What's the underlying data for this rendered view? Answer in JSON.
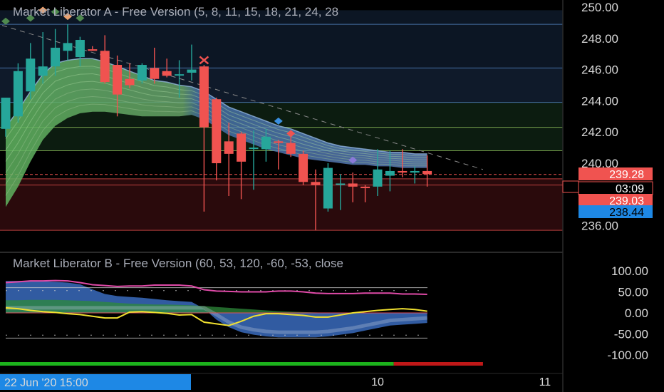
{
  "chart_data": {
    "type": "candlestick",
    "main_panel": {
      "title": "Market Liberator A - Free Version (5, 8, 11, 15, 18, 21, 24, 28",
      "y_ticks": [
        "250.00",
        "248.00",
        "246.00",
        "244.00",
        "242.00",
        "240.00",
        "236.00"
      ],
      "ylim": [
        235.4,
        250.6
      ],
      "price_badges": [
        {
          "text": "239.28",
          "value": 239.28,
          "bg": "#f05350",
          "fg": "#ffffff"
        },
        {
          "text": "03:09",
          "value": 238.6,
          "bg": "#000000",
          "fg": "#ffffff",
          "border": "#f05350"
        },
        {
          "text": "239.03",
          "value": 239.03,
          "bg": "#f05350",
          "fg": "#ffffff"
        },
        {
          "text": "238.44",
          "value": 238.44,
          "bg": "#1e88e5",
          "fg": "#000000",
          "dash": "-"
        }
      ],
      "horizontal_levels": [
        {
          "value": 248.9,
          "color": "#5a8fd0"
        },
        {
          "value": 246.1,
          "color": "#5a8fd0"
        },
        {
          "value": 243.9,
          "color": "#5a8fd0"
        },
        {
          "value": 242.3,
          "color": "#9acd60"
        },
        {
          "value": 240.8,
          "color": "#9acd60"
        },
        {
          "value": 239.0,
          "color": "#f05350"
        },
        {
          "value": 238.6,
          "color": "#f05350"
        },
        {
          "value": 235.7,
          "color": "#f05350"
        }
      ],
      "candles": [
        {
          "o": 242.2,
          "h": 244.2,
          "l": 241.7,
          "c": 244.2
        },
        {
          "o": 243.0,
          "h": 246.4,
          "l": 242.6,
          "c": 245.9
        },
        {
          "o": 244.6,
          "h": 247.7,
          "l": 244.1,
          "c": 246.7
        },
        {
          "o": 245.6,
          "h": 248.4,
          "l": 245.1,
          "c": 246.2
        },
        {
          "o": 246.2,
          "h": 248.6,
          "l": 245.6,
          "c": 247.4
        },
        {
          "o": 247.2,
          "h": 248.9,
          "l": 246.6,
          "c": 247.7
        },
        {
          "o": 246.8,
          "h": 248.1,
          "l": 246.2,
          "c": 247.9
        },
        {
          "o": 247.3,
          "h": 247.5,
          "l": 247.2,
          "c": 247.2
        },
        {
          "o": 247.2,
          "h": 248.2,
          "l": 245.1,
          "c": 245.2
        },
        {
          "o": 246.3,
          "h": 246.9,
          "l": 243.0,
          "c": 244.4
        },
        {
          "o": 245.4,
          "h": 246.4,
          "l": 244.8,
          "c": 245.0
        },
        {
          "o": 245.3,
          "h": 246.4,
          "l": 245.1,
          "c": 246.3
        },
        {
          "o": 246.1,
          "h": 247.4,
          "l": 245.1,
          "c": 245.4
        },
        {
          "o": 245.9,
          "h": 246.7,
          "l": 245.5,
          "c": 245.6
        },
        {
          "o": 245.7,
          "h": 246.6,
          "l": 244.2,
          "c": 245.7
        },
        {
          "o": 245.8,
          "h": 247.6,
          "l": 245.3,
          "c": 246.0
        },
        {
          "o": 246.2,
          "h": 246.3,
          "l": 236.9,
          "c": 242.3
        },
        {
          "o": 244.1,
          "h": 244.2,
          "l": 238.9,
          "c": 240.0
        },
        {
          "o": 241.4,
          "h": 242.6,
          "l": 237.9,
          "c": 240.6
        },
        {
          "o": 241.9,
          "h": 242.0,
          "l": 237.7,
          "c": 240.1
        },
        {
          "o": 241.0,
          "h": 242.1,
          "l": 238.3,
          "c": 241.0
        },
        {
          "o": 240.9,
          "h": 242.2,
          "l": 240.1,
          "c": 241.7
        },
        {
          "o": 241.4,
          "h": 241.5,
          "l": 239.6,
          "c": 241.3
        },
        {
          "o": 241.3,
          "h": 241.7,
          "l": 240.4,
          "c": 240.6
        },
        {
          "o": 240.6,
          "h": 240.8,
          "l": 238.6,
          "c": 238.8
        },
        {
          "o": 238.8,
          "h": 239.6,
          "l": 235.7,
          "c": 238.6
        },
        {
          "o": 237.1,
          "h": 240.0,
          "l": 236.9,
          "c": 239.7
        },
        {
          "o": 238.7,
          "h": 239.3,
          "l": 237.0,
          "c": 238.7
        },
        {
          "o": 238.7,
          "h": 239.4,
          "l": 237.5,
          "c": 238.5
        },
        {
          "o": 238.5,
          "h": 238.6,
          "l": 237.5,
          "c": 238.4
        },
        {
          "o": 238.5,
          "h": 240.9,
          "l": 237.9,
          "c": 239.6
        },
        {
          "o": 239.2,
          "h": 240.8,
          "l": 238.2,
          "c": 239.5
        },
        {
          "o": 239.5,
          "h": 240.9,
          "l": 239.1,
          "c": 239.4
        },
        {
          "o": 239.4,
          "h": 239.8,
          "l": 238.7,
          "c": 239.5
        },
        {
          "o": 239.5,
          "h": 240.5,
          "l": 238.5,
          "c": 239.3
        }
      ],
      "markers": [
        {
          "i": 0,
          "value": 249.1,
          "shape": "diamond",
          "color": "#4f8a4f"
        },
        {
          "i": 2,
          "value": 249.3,
          "shape": "diamond",
          "color": "#4f8a4f"
        },
        {
          "i": 3,
          "value": 249.8,
          "shape": "diamond",
          "color": "#e8a070"
        },
        {
          "i": 4,
          "value": 249.7,
          "shape": "diamond",
          "color": "#4f8a4f"
        },
        {
          "i": 5,
          "value": 249.4,
          "shape": "diamond",
          "color": "#e8a070"
        },
        {
          "i": 6,
          "value": 249.3,
          "shape": "diamond",
          "color": "#4f8a4f"
        },
        {
          "i": 16,
          "value": 246.6,
          "shape": "cross",
          "color": "#f05350"
        },
        {
          "i": 22,
          "value": 242.7,
          "shape": "diamond",
          "color": "#3a8fe0"
        },
        {
          "i": 23,
          "value": 241.9,
          "shape": "diamond",
          "color": "#f05350"
        },
        {
          "i": 28,
          "value": 240.2,
          "shape": "diamond",
          "color": "#8a7ad8"
        }
      ],
      "ribbon_upper": [
        242.3,
        243.4,
        244.6,
        245.7,
        246.4,
        246.6,
        246.7,
        246.7,
        246.5,
        246.2,
        245.9,
        245.6,
        245.3,
        245.2,
        245.0,
        244.9,
        244.6,
        244.1,
        243.6,
        243.3,
        243.0,
        242.7,
        242.4,
        242.2,
        241.9,
        241.6,
        241.3,
        241.1,
        241.0,
        240.9,
        240.8,
        240.7,
        240.7,
        240.6,
        240.6
      ],
      "ribbon_lower": [
        237.2,
        238.5,
        240.1,
        241.5,
        242.4,
        242.9,
        243.2,
        243.3,
        243.3,
        243.2,
        243.1,
        243.0,
        243.0,
        243.0,
        243.0,
        243.1,
        242.8,
        242.3,
        241.8,
        241.5,
        241.2,
        240.9,
        240.7,
        240.5,
        240.3,
        240.2,
        240.1,
        240.0,
        239.9,
        239.9,
        239.8,
        239.8,
        239.7,
        239.7,
        239.7
      ],
      "trend_line": {
        "from": [
          -1,
          249.0
        ],
        "to": [
          38.5,
          239.6
        ]
      }
    },
    "indicator_panel": {
      "title": "Market Liberator B - Free Version (60, 53, 120, -60, -53, close",
      "y_ticks": [
        "100.00",
        "50.00",
        "0.00",
        "-50.00",
        "-100.00"
      ],
      "ylim": [
        -120,
        120
      ],
      "levels": [
        60,
        53,
        -53,
        -60
      ],
      "pink_line": [
        72,
        74,
        76,
        76,
        77,
        76,
        72,
        67,
        65,
        63,
        64,
        64,
        66,
        66,
        66,
        64,
        55,
        52,
        51,
        50,
        50,
        50,
        52,
        52,
        50,
        47,
        46,
        46,
        46,
        47,
        47,
        47,
        45,
        45,
        44
      ],
      "yellow_line": [
        12,
        10,
        6,
        3,
        1,
        -2,
        -4,
        -8,
        -12,
        -12,
        2,
        3,
        1,
        -1,
        -5,
        -4,
        -22,
        -26,
        -30,
        -20,
        -8,
        -2,
        -2,
        -4,
        -6,
        -10,
        -10,
        -5,
        0,
        3,
        6,
        8,
        10,
        8,
        4
      ],
      "blue_fill": [
        76,
        76,
        76,
        75,
        74,
        72,
        68,
        56,
        45,
        40,
        38,
        36,
        33,
        30,
        28,
        26,
        10,
        -16,
        -34,
        -46,
        -52,
        -56,
        -58,
        -58,
        -58,
        -58,
        -56,
        -52,
        -48,
        -42,
        -36,
        -30,
        -28,
        -26,
        -24
      ],
      "green_fill": [
        30,
        30,
        31,
        31,
        31,
        30,
        29,
        28,
        26,
        24,
        22,
        21,
        20,
        20,
        19,
        18,
        16,
        14,
        12,
        10,
        8,
        6,
        4,
        3,
        2,
        1,
        0,
        0,
        0,
        0,
        0,
        0,
        0,
        0,
        0
      ],
      "signal_bar": {
        "green_to": 31.3,
        "end": 38.5
      }
    },
    "x_axis": {
      "ticks": [
        {
          "label": "10",
          "i": 30.0
        },
        {
          "label": "11",
          "i": 43.5
        }
      ],
      "cursor_label": "22 Jun '20    15:00"
    }
  }
}
